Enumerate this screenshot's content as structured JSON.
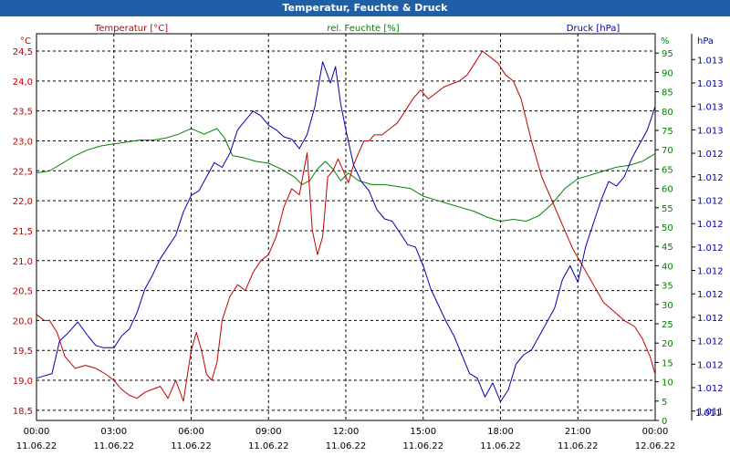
{
  "window": {
    "title": "Temperatur, Feuchte & Druck"
  },
  "chart_data": {
    "type": "line",
    "title": "Temperatur, Feuchte & Druck",
    "grid": true,
    "legend": {
      "temperature": "Temperatur [°C]",
      "humidity": "rel. Feuchte [%]",
      "pressure": "Druck [hPa]"
    },
    "units": {
      "left": "°C",
      "right1": "%",
      "right2": "hPa"
    },
    "colors": {
      "temperature": "#c00000",
      "humidity": "#008000",
      "pressure": "#0000b0",
      "grid": "#000000",
      "title_bg": "#1f5fa8"
    },
    "x_ticks": [
      {
        "h": 0,
        "time": "00:00",
        "date": "11.06.22"
      },
      {
        "h": 3,
        "time": "03:00",
        "date": "11.06.22"
      },
      {
        "h": 6,
        "time": "06:00",
        "date": "11.06.22"
      },
      {
        "h": 9,
        "time": "09:00",
        "date": "11.06.22"
      },
      {
        "h": 12,
        "time": "12:00",
        "date": "11.06.22"
      },
      {
        "h": 15,
        "time": "15:00",
        "date": "11.06.22"
      },
      {
        "h": 18,
        "time": "18:00",
        "date": "11.06.22"
      },
      {
        "h": 21,
        "time": "21:00",
        "date": "11.06.22"
      },
      {
        "h": 24,
        "time": "00:00",
        "date": "12.06.22"
      }
    ],
    "xlim": [
      0,
      24
    ],
    "temperature": {
      "name": "Temperatur [°C]",
      "ylim": [
        18.33,
        24.79
      ],
      "ticks": [
        "18.5",
        "19.0",
        "19.5",
        "20.0",
        "20.5",
        "21.0",
        "21.5",
        "22.0",
        "22.5",
        "23.0",
        "23.5",
        "24.0",
        "24.5"
      ],
      "tick_labels": [
        "18,5",
        "19,0",
        "19,5",
        "20,0",
        "20,5",
        "21,0",
        "21,5",
        "22,0",
        "22,5",
        "23,0",
        "23,5",
        "24,0",
        "24,5"
      ],
      "x": [
        0,
        0.3,
        0.5,
        0.8,
        1.1,
        1.5,
        1.9,
        2.3,
        2.7,
        3.0,
        3.3,
        3.6,
        3.9,
        4.2,
        4.5,
        4.8,
        5.1,
        5.4,
        5.7,
        6.0,
        6.2,
        6.4,
        6.6,
        6.8,
        7.0,
        7.2,
        7.5,
        7.8,
        8.1,
        8.4,
        8.7,
        9.0,
        9.3,
        9.6,
        9.9,
        10.2,
        10.5,
        10.7,
        10.9,
        11.1,
        11.3,
        11.5,
        11.7,
        11.9,
        12.1,
        12.3,
        12.5,
        12.7,
        12.9,
        13.1,
        13.4,
        13.7,
        14.0,
        14.3,
        14.6,
        14.9,
        15.2,
        15.5,
        15.8,
        16.1,
        16.4,
        16.7,
        17.0,
        17.3,
        17.6,
        17.9,
        18.2,
        18.5,
        18.8,
        19.2,
        19.6,
        20.0,
        20.4,
        20.8,
        21.2,
        21.6,
        22.0,
        22.4,
        22.8,
        23.2,
        23.5,
        23.8,
        24.0
      ],
      "values": [
        20.1,
        20.0,
        20.0,
        19.8,
        19.4,
        19.2,
        19.25,
        19.2,
        19.1,
        19.0,
        18.85,
        18.75,
        18.7,
        18.8,
        18.85,
        18.9,
        18.7,
        19.0,
        18.65,
        19.5,
        19.8,
        19.5,
        19.1,
        19.0,
        19.3,
        20.0,
        20.4,
        20.6,
        20.5,
        20.8,
        21.0,
        21.1,
        21.4,
        21.9,
        22.2,
        22.1,
        22.8,
        21.5,
        21.1,
        21.4,
        22.4,
        22.5,
        22.7,
        22.5,
        22.3,
        22.6,
        22.8,
        23.0,
        23.0,
        23.1,
        23.1,
        23.2,
        23.3,
        23.5,
        23.7,
        23.85,
        23.7,
        23.8,
        23.9,
        23.95,
        24.0,
        24.1,
        24.3,
        24.5,
        24.4,
        24.3,
        24.1,
        24.0,
        23.7,
        23.0,
        22.4,
        22.0,
        21.6,
        21.2,
        20.9,
        20.6,
        20.3,
        20.15,
        20.0,
        19.9,
        19.7,
        19.4,
        19.1
      ]
    },
    "humidity": {
      "name": "rel. Feuchte [%]",
      "ylim": [
        0,
        100
      ],
      "ticks": [
        0,
        5,
        10,
        15,
        20,
        25,
        30,
        35,
        40,
        45,
        50,
        55,
        60,
        65,
        70,
        75,
        80,
        85,
        90,
        95
      ],
      "tick_labels": [
        "0",
        "5",
        "10",
        "15",
        "20",
        "25",
        "30",
        "35",
        "40",
        "45",
        "50",
        "55",
        "60",
        "65",
        "70",
        "75",
        "80",
        "85",
        "90",
        "95"
      ],
      "x": [
        0,
        0.5,
        1.0,
        1.5,
        2.0,
        2.5,
        3.0,
        3.5,
        4.0,
        4.5,
        5.0,
        5.5,
        6.0,
        6.5,
        7.0,
        7.3,
        7.6,
        8.0,
        8.5,
        9.0,
        9.5,
        10.0,
        10.3,
        10.6,
        10.9,
        11.2,
        11.5,
        11.8,
        12.1,
        12.5,
        13.0,
        13.5,
        14.0,
        14.5,
        15.0,
        15.5,
        16.0,
        16.5,
        17.0,
        17.5,
        18.0,
        18.5,
        19.0,
        19.5,
        20.0,
        20.5,
        21.0,
        21.5,
        22.0,
        22.5,
        23.0,
        23.5,
        24.0
      ],
      "values": [
        64,
        64.5,
        66.5,
        68.5,
        70,
        71,
        71.5,
        72,
        72.5,
        72.5,
        73,
        74,
        75.5,
        74,
        75.5,
        73,
        68.5,
        68,
        67,
        66.5,
        65,
        63,
        61,
        62,
        65,
        67,
        65,
        62,
        64,
        62,
        61,
        61,
        60.5,
        60,
        58,
        57,
        56,
        55,
        54,
        52.5,
        51.5,
        52,
        51.5,
        53,
        56,
        60,
        62.5,
        63.5,
        64.5,
        65.5,
        66,
        67,
        69
      ]
    },
    "pressure": {
      "name": "Druck [hPa]",
      "ticks": [
        10,
        20,
        30,
        40,
        50,
        60,
        70,
        80,
        90,
        100,
        110,
        120,
        130,
        140,
        150,
        160
      ],
      "tick_labels": [
        "1.011",
        "1.012",
        "1.012",
        "1.012",
        "1.012",
        "1.012",
        "1.012",
        "1.012",
        "1.012",
        "1.012",
        "1.012",
        "1.012",
        "1.013",
        "1.013",
        "1.013",
        "1.013"
      ],
      "ylim": [
        6,
        171
      ],
      "x": [
        0,
        0.3,
        0.6,
        0.9,
        1.2,
        1.6,
        2.0,
        2.3,
        2.6,
        3.0,
        3.3,
        3.6,
        3.9,
        4.2,
        4.5,
        4.8,
        5.1,
        5.4,
        5.7,
        6.0,
        6.3,
        6.6,
        6.9,
        7.2,
        7.5,
        7.8,
        8.1,
        8.4,
        8.7,
        9.0,
        9.3,
        9.6,
        9.9,
        10.2,
        10.5,
        10.8,
        11.1,
        11.4,
        11.6,
        11.8,
        12.0,
        12.3,
        12.6,
        12.9,
        13.2,
        13.5,
        13.8,
        14.1,
        14.4,
        14.7,
        15.0,
        15.3,
        15.6,
        15.9,
        16.2,
        16.5,
        16.8,
        17.1,
        17.4,
        17.7,
        18.0,
        18.3,
        18.6,
        18.9,
        19.2,
        19.5,
        19.8,
        20.1,
        20.4,
        20.7,
        21.0,
        21.3,
        21.6,
        21.9,
        22.2,
        22.5,
        22.8,
        23.1,
        23.4,
        23.7,
        24.0
      ],
      "values": [
        24,
        25,
        26,
        40,
        43,
        48,
        42,
        38,
        37,
        37,
        42,
        45,
        52,
        62,
        68,
        75,
        80,
        85,
        95,
        102,
        104,
        110,
        116,
        114,
        120,
        130,
        134,
        138,
        136,
        132,
        130,
        127,
        126,
        122,
        128,
        140,
        159,
        150,
        157,
        141,
        130,
        115,
        108,
        104,
        96,
        92,
        91,
        86,
        81,
        80,
        72,
        62,
        55,
        48,
        42,
        34,
        26,
        24,
        16,
        22,
        14,
        19,
        30,
        34,
        36,
        42,
        48,
        54,
        66,
        72,
        65,
        80,
        90,
        100,
        108,
        106,
        110,
        118,
        124,
        130,
        140
      ]
    },
    "right_hpa_extra": {
      "value": "1.011"
    }
  }
}
